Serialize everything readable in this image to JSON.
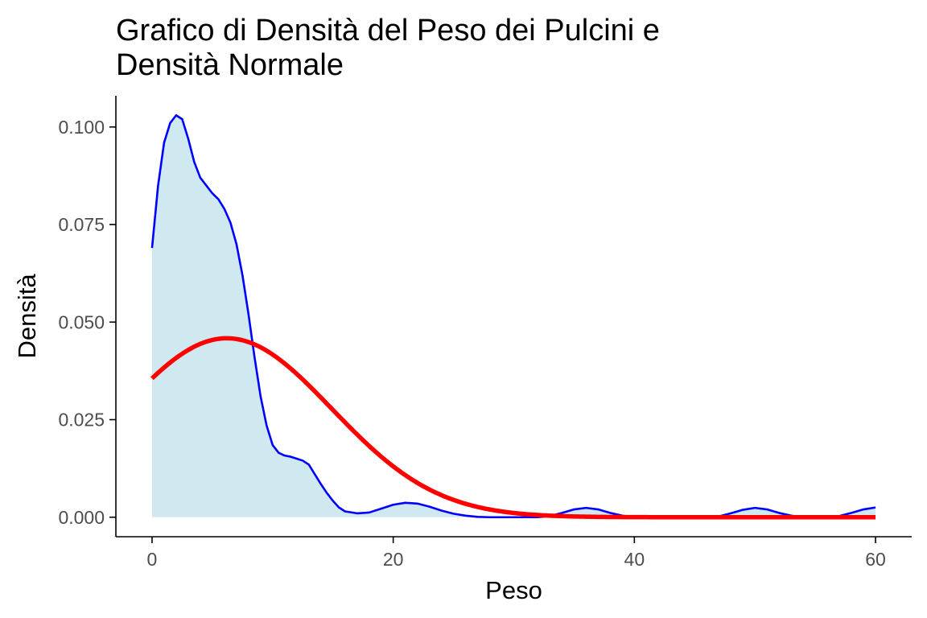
{
  "chart_data": {
    "type": "area",
    "title_lines": [
      "Grafico di Densità del Peso dei Pulcini e",
      "Densità Normale"
    ],
    "xlabel": "Peso",
    "ylabel": "Densità",
    "xlim": [
      -3,
      63
    ],
    "ylim": [
      -0.005,
      0.108
    ],
    "x_ticks": [
      0,
      20,
      40,
      60
    ],
    "x_tick_labels": [
      "0",
      "20",
      "40",
      "60"
    ],
    "y_ticks": [
      0,
      0.025,
      0.05,
      0.075,
      0.1
    ],
    "y_tick_labels": [
      "0.000",
      "0.025",
      "0.050",
      "0.075",
      "0.100"
    ],
    "grid": false,
    "legend": "none",
    "series": [
      {
        "role": "kernel-density",
        "color": "#0000ff",
        "fill": "#d0e8f0",
        "points": [
          [
            0,
            0.069
          ],
          [
            0.5,
            0.085
          ],
          [
            1,
            0.096
          ],
          [
            1.5,
            0.101
          ],
          [
            2,
            0.103
          ],
          [
            2.5,
            0.102
          ],
          [
            3,
            0.097
          ],
          [
            3.5,
            0.091
          ],
          [
            4,
            0.087
          ],
          [
            4.5,
            0.085
          ],
          [
            5,
            0.083
          ],
          [
            5.5,
            0.0815
          ],
          [
            6,
            0.079
          ],
          [
            6.5,
            0.0755
          ],
          [
            7,
            0.07
          ],
          [
            7.5,
            0.062
          ],
          [
            8,
            0.052
          ],
          [
            8.5,
            0.041
          ],
          [
            9,
            0.031
          ],
          [
            9.5,
            0.0235
          ],
          [
            10,
            0.0185
          ],
          [
            10.5,
            0.0165
          ],
          [
            11,
            0.0158
          ],
          [
            11.5,
            0.0155
          ],
          [
            12,
            0.015
          ],
          [
            12.5,
            0.0145
          ],
          [
            13,
            0.0135
          ],
          [
            13.5,
            0.011
          ],
          [
            14,
            0.0085
          ],
          [
            14.5,
            0.0062
          ],
          [
            15,
            0.0042
          ],
          [
            15.5,
            0.0025
          ],
          [
            16,
            0.0015
          ],
          [
            17,
            0.001
          ],
          [
            18,
            0.0012
          ],
          [
            19,
            0.0022
          ],
          [
            20,
            0.0032
          ],
          [
            21,
            0.0037
          ],
          [
            22,
            0.0035
          ],
          [
            23,
            0.0027
          ],
          [
            24,
            0.0017
          ],
          [
            25,
            0.0009
          ],
          [
            26,
            0.0004
          ],
          [
            27,
            0.0001
          ],
          [
            28,
            0
          ],
          [
            32,
            0
          ],
          [
            33,
            0.0003
          ],
          [
            34,
            0.0011
          ],
          [
            35,
            0.002
          ],
          [
            36,
            0.0024
          ],
          [
            37,
            0.002
          ],
          [
            38,
            0.0011
          ],
          [
            39,
            0.0004
          ],
          [
            40,
            0
          ],
          [
            46,
            0
          ],
          [
            47,
            0.0002
          ],
          [
            48,
            0.001
          ],
          [
            49,
            0.0019
          ],
          [
            50,
            0.0024
          ],
          [
            51,
            0.002
          ],
          [
            52,
            0.0011
          ],
          [
            53,
            0.0004
          ],
          [
            54,
            0
          ],
          [
            56,
            0
          ],
          [
            57,
            0.0003
          ],
          [
            58,
            0.0011
          ],
          [
            59,
            0.002
          ],
          [
            60,
            0.0025
          ]
        ]
      },
      {
        "role": "normal-density",
        "color": "#ff0000",
        "mean": 6.2,
        "sd": 8.7,
        "x_range": [
          0,
          60
        ]
      }
    ]
  }
}
